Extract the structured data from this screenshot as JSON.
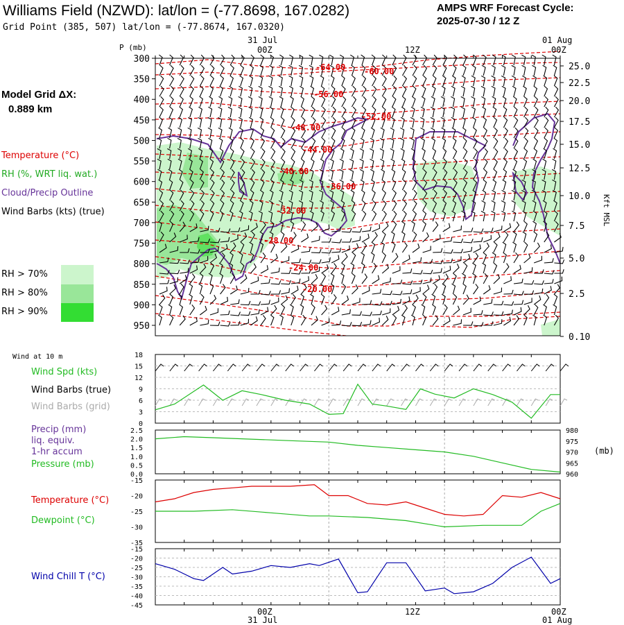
{
  "header": {
    "title": "Williams Field (NZWD):  lat/lon = (-77.8698, 167.0282)",
    "grid_point": "Grid Point (385, 507) lat/lon = (-77.8674, 167.0320)",
    "cycle_line1": "AMPS WRF Forecast Cycle:",
    "cycle_line2": "2025-07-30 / 12  Z"
  },
  "top_time_axis": {
    "date_left": "31 Jul",
    "date_right": "01 Aug",
    "ticks": [
      "00Z",
      "12Z",
      "00Z"
    ]
  },
  "bottom_time_axis": {
    "ticks": [
      "00Z",
      "12Z",
      "00Z"
    ],
    "dates": [
      "31 Jul",
      "01 Aug"
    ]
  },
  "sounding_panel": {
    "p_label": "P (mb)",
    "right_axis_label": "Kft MSL",
    "model_grid_label": "Model Grid ΔX:",
    "model_grid_value": "0.889 km",
    "legend": {
      "temperature": "Temperature (°C)",
      "rh": "RH (%, WRT liq. wat.)",
      "cloud": "Cloud/Precip Outline",
      "wind": "Wind Barbs (kts) (true)"
    },
    "rh_keys": [
      {
        "label": "RH > 70%",
        "color": "#ccf5cc"
      },
      {
        "label": "RH > 80%",
        "color": "#99e699"
      },
      {
        "label": "RH > 90%",
        "color": "#33dd33"
      }
    ],
    "colors": {
      "temperature": "#dd0000",
      "cloud": "#663399"
    },
    "pressure_ticks": [
      "300",
      "350",
      "400",
      "450",
      "500",
      "550",
      "600",
      "650",
      "700",
      "750",
      "800",
      "850",
      "900",
      "950"
    ],
    "kft_ticks": [
      "25.0",
      "22.5",
      "20.0",
      "17.5",
      "15.0",
      "12.5",
      "10.0",
      "7.5",
      "5.0",
      "2.5",
      "0.10"
    ],
    "contour_labels": [
      "-64.00",
      "-60.00",
      "-56.00",
      "-52.00",
      "-48.00",
      "-44.00",
      "-40.00",
      "-36.00",
      "-32.00",
      "-28.00",
      "-24.00",
      "-20.00"
    ]
  },
  "chart_data": [
    {
      "type": "line",
      "panel": "wind10m",
      "header_label": "Wind at 10 m",
      "labels": {
        "speed": "Wind Spd (kts)",
        "barbs_true": "Wind Barbs (true)",
        "barbs_grid": "Wind Barbs (grid)"
      },
      "colors": {
        "speed": "#22bb22",
        "barbs_true": "#000000",
        "barbs_grid": "#aaaaaa"
      },
      "ylim": [
        0,
        18
      ],
      "y_ticks": [
        "0",
        "3",
        "6",
        "9",
        "12",
        "15",
        "18"
      ],
      "x_hours": [
        -18,
        -15,
        -12,
        -9,
        -6,
        -3,
        0,
        3,
        6,
        9,
        12,
        15,
        18,
        21,
        24
      ],
      "series": [
        {
          "name": "Wind Spd (kts)",
          "x": [
            -18,
            -16,
            -13,
            -11,
            -9,
            -7,
            -4.5,
            -2,
            0,
            1.5,
            3,
            4.5,
            6,
            8,
            9.5,
            11,
            13,
            15,
            17,
            19,
            21,
            23,
            24
          ],
          "values": [
            3.5,
            5,
            10,
            6,
            8.5,
            7.5,
            6,
            5,
            2.3,
            2.5,
            10.2,
            5,
            4.5,
            3.6,
            9,
            7.6,
            6.6,
            9,
            7.5,
            5.5,
            1.3,
            7.5,
            7.5
          ]
        }
      ]
    },
    {
      "type": "line",
      "panel": "precip_pressure",
      "labels": {
        "precip": "Precip (mm)",
        "precip2": "liq. equiv.",
        "precip3": "1-hr accum",
        "pressure": "Pressure (mb)"
      },
      "colors": {
        "precip": "#663399",
        "pressure": "#22bb22"
      },
      "ylim_left": [
        0,
        2.5
      ],
      "ylim_right": [
        960,
        980
      ],
      "y_ticks_left": [
        "0.0",
        "0.5",
        "1.0",
        "1.5",
        "2.0",
        "2.5"
      ],
      "y_ticks_right": [
        "960",
        "965",
        "970",
        "975",
        "980"
      ],
      "series": [
        {
          "name": "Pressure (mb)",
          "x": [
            -18,
            -15,
            -12,
            -9,
            -6,
            -3,
            0,
            3,
            6,
            9,
            12,
            15,
            18,
            21,
            24
          ],
          "values": [
            976,
            977,
            976.5,
            976,
            975.5,
            975,
            974.5,
            973,
            972,
            971,
            970,
            968,
            965,
            962,
            960.8
          ]
        }
      ]
    },
    {
      "type": "line",
      "panel": "temp_dewpoint",
      "labels": {
        "temperature": "Temperature (°C)",
        "dewpoint": "Dewpoint (°C)"
      },
      "colors": {
        "temperature": "#dd0000",
        "dewpoint": "#22bb22"
      },
      "ylim": [
        -35,
        -15
      ],
      "y_ticks": [
        "-35",
        "-30",
        "-25",
        "-20",
        "-15"
      ],
      "series": [
        {
          "name": "Temperature (°C)",
          "x": [
            -18,
            -16,
            -14,
            -12,
            -10,
            -8,
            -6,
            -4,
            -1.5,
            0,
            2,
            4,
            6,
            8,
            10,
            12,
            14,
            16,
            18,
            20,
            22,
            24
          ],
          "values": [
            -22,
            -21,
            -19,
            -18,
            -17.5,
            -17,
            -17,
            -17,
            -16.5,
            -20,
            -20,
            -22.5,
            -23,
            -22,
            -24,
            -26,
            -26.5,
            -26,
            -20,
            -20.5,
            -19,
            -21
          ]
        },
        {
          "name": "Dewpoint (°C)",
          "x": [
            -18,
            -14,
            -10,
            -6,
            -2,
            0,
            4,
            8,
            12,
            16,
            20,
            22,
            24
          ],
          "values": [
            -25,
            -25,
            -24.5,
            -25.5,
            -26.5,
            -26.5,
            -27,
            -28,
            -30,
            -29.5,
            -29.5,
            -25,
            -22.5
          ]
        }
      ]
    },
    {
      "type": "line",
      "panel": "wind_chill",
      "labels": {
        "wind_chill": "Wind Chill T (°C)"
      },
      "colors": {
        "wind_chill": "#0000aa"
      },
      "ylim": [
        -45,
        -15
      ],
      "y_ticks": [
        "-45",
        "-40",
        "-35",
        "-30",
        "-25",
        "-20",
        "-15"
      ],
      "series": [
        {
          "name": "Wind Chill T (°C)",
          "x": [
            -18,
            -16,
            -14,
            -13,
            -11,
            -10,
            -8,
            -6,
            -4,
            -2,
            -1,
            1,
            3,
            4,
            6,
            8,
            10,
            12,
            13,
            15,
            17,
            19,
            21,
            23,
            24
          ],
          "values": [
            -23,
            -26,
            -31,
            -32,
            -25,
            -28.5,
            -27,
            -24,
            -25,
            -23,
            -24,
            -20.5,
            -38.5,
            -38,
            -22.5,
            -22.5,
            -37.5,
            -36,
            -39,
            -38,
            -33.5,
            -25,
            -19.5,
            -33.5,
            -31
          ]
        }
      ]
    }
  ]
}
